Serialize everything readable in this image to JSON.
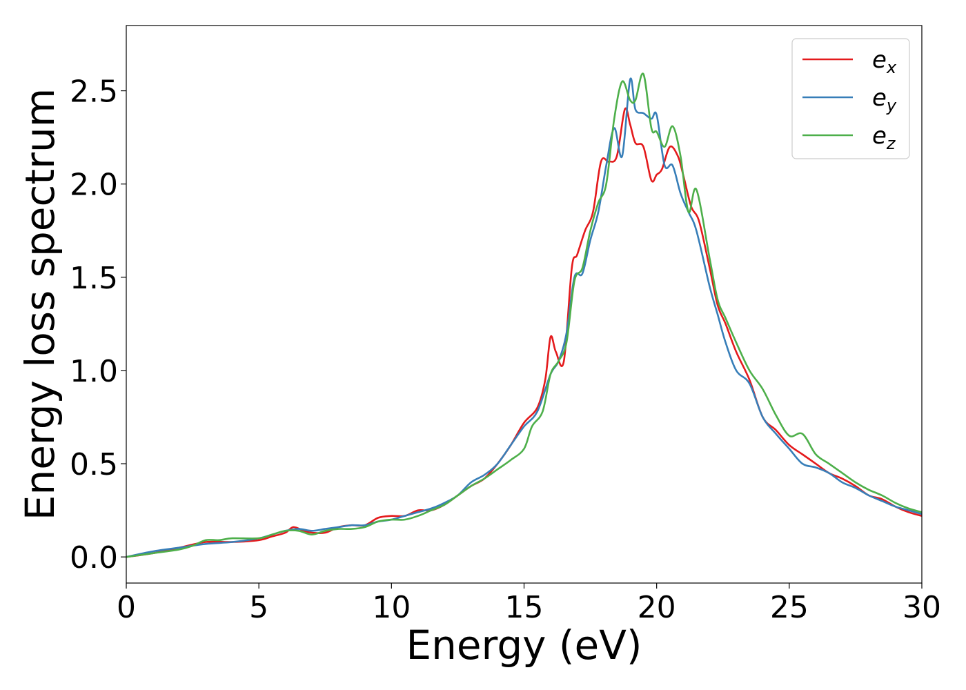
{
  "chart_data": {
    "type": "line",
    "title": "",
    "xlabel": "Energy (eV)",
    "ylabel": "Energy loss spectrum",
    "xlim": [
      0,
      30
    ],
    "ylim": [
      -0.14,
      2.85
    ],
    "xticks": [
      0,
      5,
      10,
      15,
      20,
      25,
      30
    ],
    "xtick_labels": [
      "0",
      "5",
      "10",
      "15",
      "20",
      "25",
      "30"
    ],
    "yticks": [
      0.0,
      0.5,
      1.0,
      1.5,
      2.0,
      2.5
    ],
    "ytick_labels": [
      "0.0",
      "0.5",
      "1.0",
      "1.5",
      "2.0",
      "2.5"
    ],
    "grid": false,
    "legend_position": "top-right",
    "series": [
      {
        "name": "e_x",
        "label_base": "e",
        "label_sub": "x",
        "color": "#e41a1c",
        "x": [
          0,
          1,
          2,
          3,
          4,
          5,
          5.5,
          6,
          6.3,
          6.7,
          7,
          7.5,
          8,
          8.5,
          9,
          9.5,
          10,
          10.5,
          11,
          11.5,
          12,
          12.5,
          13,
          13.5,
          14,
          14.5,
          15,
          15.5,
          15.8,
          16,
          16.2,
          16.5,
          16.8,
          17,
          17.3,
          17.6,
          17.9,
          18.2,
          18.5,
          18.8,
          19,
          19.2,
          19.5,
          19.8,
          20,
          20.2,
          20.5,
          20.8,
          21,
          21.3,
          21.6,
          22,
          22.3,
          22.6,
          23,
          23.5,
          24,
          24.5,
          25,
          25.5,
          26,
          26.5,
          27,
          27.5,
          28,
          28.5,
          29,
          29.5,
          30
        ],
        "y": [
          0,
          0.02,
          0.05,
          0.08,
          0.08,
          0.09,
          0.11,
          0.13,
          0.16,
          0.14,
          0.13,
          0.13,
          0.16,
          0.17,
          0.17,
          0.21,
          0.22,
          0.22,
          0.25,
          0.25,
          0.28,
          0.33,
          0.38,
          0.42,
          0.5,
          0.6,
          0.72,
          0.8,
          0.95,
          1.18,
          1.1,
          1.05,
          1.55,
          1.62,
          1.75,
          1.85,
          2.12,
          2.12,
          2.15,
          2.4,
          2.32,
          2.22,
          2.2,
          2.02,
          2.05,
          2.08,
          2.2,
          2.15,
          2.05,
          1.88,
          1.8,
          1.55,
          1.35,
          1.25,
          1.1,
          0.95,
          0.75,
          0.68,
          0.6,
          0.55,
          0.5,
          0.45,
          0.42,
          0.38,
          0.33,
          0.31,
          0.27,
          0.24,
          0.22
        ]
      },
      {
        "name": "e_y",
        "label_base": "e",
        "label_sub": "y",
        "color": "#377eb8",
        "x": [
          0,
          1,
          2,
          3,
          4,
          5,
          5.5,
          6,
          6.5,
          7,
          7.5,
          8,
          8.5,
          9,
          9.5,
          10,
          10.5,
          11,
          11.5,
          12,
          12.5,
          13,
          13.5,
          14,
          14.5,
          15,
          15.5,
          16,
          16.3,
          16.6,
          16.9,
          17.2,
          17.5,
          17.8,
          18.1,
          18.4,
          18.7,
          19,
          19.2,
          19.5,
          19.8,
          20,
          20.3,
          20.6,
          20.9,
          21.2,
          21.5,
          22,
          22.3,
          22.6,
          23,
          23.5,
          24,
          24.5,
          25,
          25.5,
          26,
          26.5,
          27,
          27.5,
          28,
          28.5,
          29,
          29.5,
          30
        ],
        "y": [
          0,
          0.03,
          0.05,
          0.07,
          0.08,
          0.1,
          0.12,
          0.14,
          0.15,
          0.14,
          0.15,
          0.16,
          0.17,
          0.17,
          0.19,
          0.2,
          0.22,
          0.24,
          0.26,
          0.29,
          0.33,
          0.4,
          0.44,
          0.5,
          0.6,
          0.7,
          0.78,
          0.98,
          1.05,
          1.2,
          1.5,
          1.52,
          1.7,
          1.85,
          2.1,
          2.3,
          2.15,
          2.56,
          2.4,
          2.38,
          2.35,
          2.37,
          2.1,
          2.1,
          1.95,
          1.85,
          1.75,
          1.45,
          1.3,
          1.15,
          1.0,
          0.93,
          0.75,
          0.66,
          0.58,
          0.5,
          0.48,
          0.45,
          0.4,
          0.37,
          0.33,
          0.3,
          0.27,
          0.25,
          0.23
        ]
      },
      {
        "name": "e_z",
        "label_base": "e",
        "label_sub": "z",
        "color": "#4daf4a",
        "x": [
          0,
          1,
          2,
          2.5,
          3,
          3.5,
          4,
          5,
          5.5,
          6,
          6.5,
          7,
          7.5,
          8,
          8.5,
          9,
          9.5,
          10,
          10.5,
          11,
          11.5,
          12,
          12.5,
          13,
          13.5,
          14,
          14.5,
          15,
          15.3,
          15.7,
          16,
          16.3,
          16.6,
          16.9,
          17.2,
          17.5,
          17.8,
          18.1,
          18.4,
          18.7,
          19,
          19.2,
          19.5,
          19.8,
          20,
          20.3,
          20.6,
          20.9,
          21.2,
          21.5,
          22,
          22.3,
          22.6,
          23,
          23.5,
          24,
          24.5,
          25,
          25.5,
          26,
          26.5,
          27,
          27.5,
          28,
          28.5,
          29,
          29.5,
          30
        ],
        "y": [
          0,
          0.02,
          0.04,
          0.06,
          0.09,
          0.09,
          0.1,
          0.1,
          0.12,
          0.14,
          0.14,
          0.12,
          0.14,
          0.15,
          0.15,
          0.16,
          0.19,
          0.2,
          0.2,
          0.22,
          0.25,
          0.28,
          0.33,
          0.38,
          0.42,
          0.47,
          0.52,
          0.58,
          0.7,
          0.78,
          0.98,
          1.05,
          1.15,
          1.48,
          1.55,
          1.75,
          1.9,
          2.0,
          2.35,
          2.55,
          2.45,
          2.45,
          2.59,
          2.3,
          2.28,
          2.2,
          2.31,
          2.15,
          1.85,
          1.97,
          1.6,
          1.38,
          1.28,
          1.15,
          1.0,
          0.9,
          0.76,
          0.65,
          0.66,
          0.55,
          0.5,
          0.45,
          0.4,
          0.36,
          0.33,
          0.29,
          0.26,
          0.24
        ]
      }
    ]
  }
}
